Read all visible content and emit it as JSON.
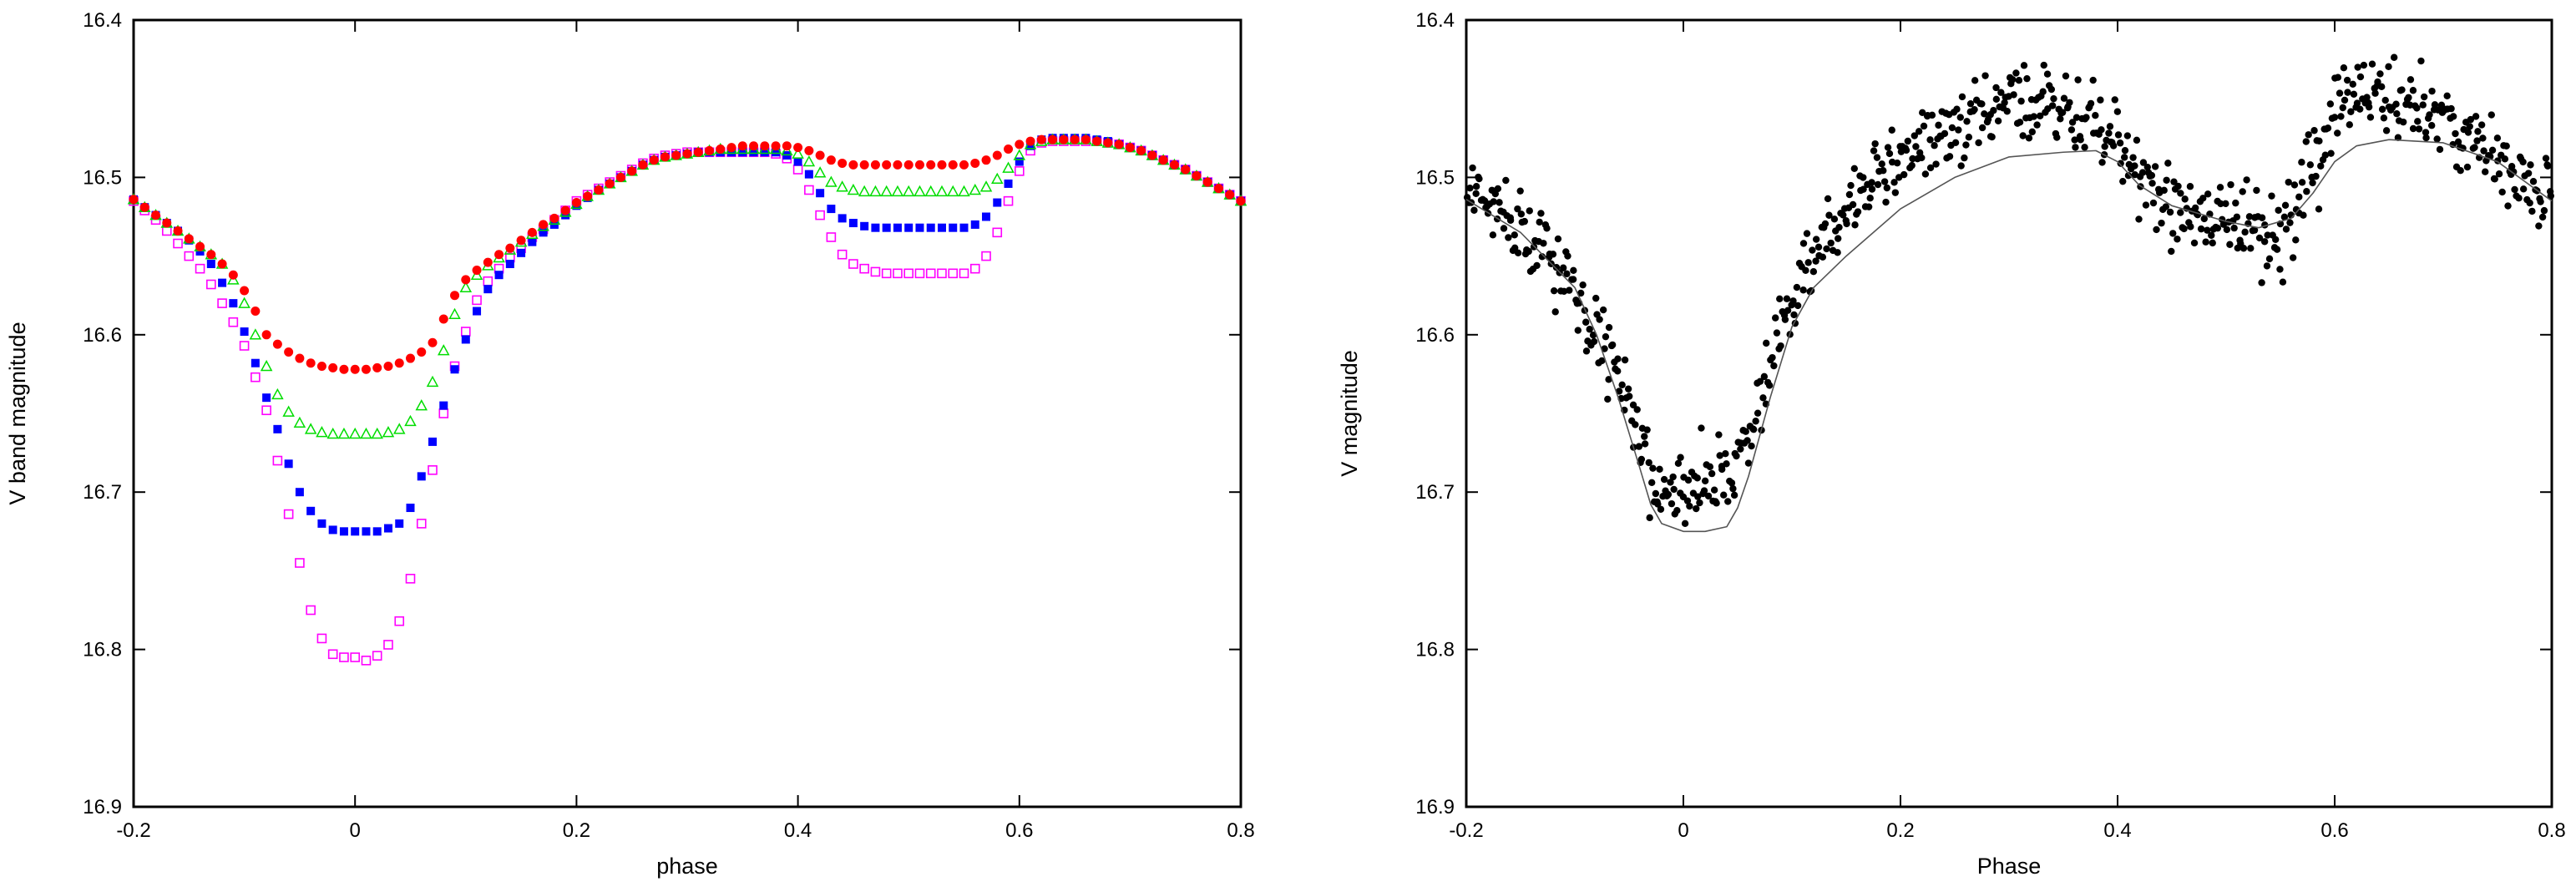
{
  "chart_data": [
    {
      "type": "scatter",
      "title": "",
      "xlabel": "phase",
      "ylabel": "V band magnitude",
      "xlim": [
        -0.2,
        0.8
      ],
      "ylim": [
        16.4,
        16.9
      ],
      "y_inverted": true,
      "grid": false,
      "legend": "none",
      "x_ticks": [
        -0.2,
        0,
        0.2,
        0.4,
        0.6,
        0.8
      ],
      "x_tick_labels": [
        "-0.2",
        "0",
        "0.2",
        "0.4",
        "0.6",
        "0.8"
      ],
      "y_ticks": [
        16.4,
        16.5,
        16.6,
        16.7,
        16.8,
        16.9
      ],
      "y_tick_labels": [
        "16.4",
        "16.5",
        "16.6",
        "16.7",
        "16.8",
        "16.9"
      ],
      "x": [
        -0.2,
        -0.19,
        -0.18,
        -0.17,
        -0.16,
        -0.15,
        -0.14,
        -0.13,
        -0.12,
        -0.11,
        -0.1,
        -0.09,
        -0.08,
        -0.07,
        -0.06,
        -0.05,
        -0.04,
        -0.03,
        -0.02,
        -0.01,
        0,
        0.01,
        0.02,
        0.03,
        0.04,
        0.05,
        0.06,
        0.07,
        0.08,
        0.09,
        0.1,
        0.11,
        0.12,
        0.13,
        0.14,
        0.15,
        0.16,
        0.17,
        0.18,
        0.19,
        0.2,
        0.21,
        0.22,
        0.23,
        0.24,
        0.25,
        0.26,
        0.27,
        0.28,
        0.29,
        0.3,
        0.31,
        0.32,
        0.33,
        0.34,
        0.35,
        0.36,
        0.37,
        0.38,
        0.39,
        0.4,
        0.41,
        0.42,
        0.43,
        0.44,
        0.45,
        0.46,
        0.47,
        0.48,
        0.49,
        0.5,
        0.51,
        0.52,
        0.53,
        0.54,
        0.55,
        0.56,
        0.57,
        0.58,
        0.59,
        0.6,
        0.61,
        0.62,
        0.63,
        0.64,
        0.65,
        0.66,
        0.67,
        0.68,
        0.69,
        0.7,
        0.71,
        0.72,
        0.73,
        0.74,
        0.75,
        0.76,
        0.77,
        0.78,
        0.79,
        0.8
      ],
      "series": [
        {
          "marker": "filled-circle",
          "color": "#ff0000",
          "values": [
            16.514,
            16.519,
            16.524,
            16.529,
            16.534,
            16.539,
            16.544,
            16.549,
            16.555,
            16.562,
            16.572,
            16.585,
            16.6,
            16.606,
            16.611,
            16.615,
            16.618,
            16.62,
            16.621,
            16.622,
            16.622,
            16.622,
            16.621,
            16.62,
            16.618,
            16.615,
            16.611,
            16.605,
            16.59,
            16.575,
            16.565,
            16.559,
            16.554,
            16.549,
            16.545,
            16.54,
            16.535,
            16.53,
            16.526,
            16.521,
            16.516,
            16.512,
            16.508,
            16.504,
            16.5,
            16.496,
            16.492,
            16.489,
            16.487,
            16.486,
            16.485,
            16.484,
            16.483,
            16.482,
            16.481,
            16.48,
            16.48,
            16.48,
            16.48,
            16.48,
            16.481,
            16.483,
            16.486,
            16.489,
            16.491,
            16.492,
            16.492,
            16.492,
            16.492,
            16.492,
            16.492,
            16.492,
            16.492,
            16.492,
            16.492,
            16.492,
            16.491,
            16.489,
            16.486,
            16.482,
            16.479,
            16.477,
            16.476,
            16.476,
            16.476,
            16.476,
            16.476,
            16.477,
            16.478,
            16.479,
            16.481,
            16.483,
            16.486,
            16.489,
            16.492,
            16.495,
            16.499,
            16.503,
            16.507,
            16.511,
            16.515
          ]
        },
        {
          "marker": "open-triangle",
          "color": "#00dd00",
          "values": [
            16.514,
            16.519,
            16.524,
            16.529,
            16.534,
            16.539,
            16.544,
            16.549,
            16.555,
            16.565,
            16.58,
            16.6,
            16.62,
            16.638,
            16.649,
            16.656,
            16.66,
            16.662,
            16.663,
            16.663,
            16.663,
            16.663,
            16.663,
            16.662,
            16.66,
            16.655,
            16.645,
            16.63,
            16.61,
            16.587,
            16.57,
            16.562,
            16.556,
            16.551,
            16.546,
            16.541,
            16.536,
            16.531,
            16.527,
            16.522,
            16.517,
            16.512,
            16.508,
            16.504,
            16.5,
            16.496,
            16.492,
            16.489,
            16.487,
            16.486,
            16.485,
            16.484,
            16.483,
            16.482,
            16.482,
            16.482,
            16.482,
            16.482,
            16.482,
            16.483,
            16.485,
            16.49,
            16.497,
            16.503,
            16.506,
            16.508,
            16.509,
            16.509,
            16.509,
            16.509,
            16.509,
            16.509,
            16.509,
            16.509,
            16.509,
            16.509,
            16.508,
            16.506,
            16.501,
            16.494,
            16.486,
            16.479,
            16.477,
            16.476,
            16.476,
            16.476,
            16.476,
            16.477,
            16.478,
            16.479,
            16.481,
            16.483,
            16.486,
            16.489,
            16.492,
            16.495,
            16.499,
            16.503,
            16.507,
            16.511,
            16.515
          ]
        },
        {
          "marker": "filled-square",
          "color": "#0000ff",
          "values": [
            16.514,
            16.519,
            16.524,
            16.529,
            16.534,
            16.54,
            16.547,
            16.555,
            16.567,
            16.58,
            16.598,
            16.618,
            16.64,
            16.66,
            16.682,
            16.7,
            16.712,
            16.72,
            16.724,
            16.725,
            16.725,
            16.725,
            16.725,
            16.723,
            16.72,
            16.71,
            16.69,
            16.668,
            16.645,
            16.622,
            16.603,
            16.585,
            16.571,
            16.562,
            16.555,
            16.548,
            16.541,
            16.535,
            16.53,
            16.524,
            16.518,
            16.513,
            16.508,
            16.504,
            16.5,
            16.496,
            16.492,
            16.489,
            16.487,
            16.486,
            16.485,
            16.484,
            16.484,
            16.484,
            16.484,
            16.484,
            16.484,
            16.484,
            16.484,
            16.486,
            16.49,
            16.498,
            16.51,
            16.52,
            16.526,
            16.529,
            16.531,
            16.532,
            16.532,
            16.532,
            16.532,
            16.532,
            16.532,
            16.532,
            16.532,
            16.532,
            16.53,
            16.525,
            16.516,
            16.504,
            16.49,
            16.48,
            16.476,
            16.475,
            16.475,
            16.475,
            16.475,
            16.476,
            16.477,
            16.479,
            16.481,
            16.483,
            16.486,
            16.489,
            16.492,
            16.495,
            16.499,
            16.503,
            16.507,
            16.511,
            16.515
          ]
        },
        {
          "marker": "open-square",
          "color": "#ff00ff",
          "values": [
            16.515,
            16.521,
            16.527,
            16.534,
            16.542,
            16.55,
            16.558,
            16.568,
            16.58,
            16.592,
            16.607,
            16.627,
            16.648,
            16.68,
            16.714,
            16.745,
            16.775,
            16.793,
            16.803,
            16.805,
            16.805,
            16.807,
            16.804,
            16.797,
            16.782,
            16.755,
            16.72,
            16.686,
            16.65,
            16.62,
            16.598,
            16.578,
            16.566,
            16.558,
            16.551,
            16.545,
            16.538,
            16.533,
            16.527,
            16.521,
            16.515,
            16.511,
            16.507,
            16.503,
            16.499,
            16.495,
            16.491,
            16.488,
            16.486,
            16.485,
            16.484,
            16.484,
            16.484,
            16.484,
            16.484,
            16.484,
            16.484,
            16.484,
            16.485,
            16.488,
            16.495,
            16.508,
            16.524,
            16.538,
            16.549,
            16.555,
            16.558,
            16.56,
            16.561,
            16.561,
            16.561,
            16.561,
            16.561,
            16.561,
            16.561,
            16.561,
            16.558,
            16.55,
            16.535,
            16.515,
            16.496,
            16.483,
            16.478,
            16.477,
            16.477,
            16.477,
            16.477,
            16.477,
            16.478,
            16.479,
            16.481,
            16.483,
            16.486,
            16.489,
            16.492,
            16.495,
            16.499,
            16.503,
            16.507,
            16.511,
            16.515
          ]
        }
      ]
    },
    {
      "type": "scatter",
      "title": "",
      "xlabel": "Phase",
      "ylabel": "V magnitude",
      "xlim": [
        -0.2,
        0.8
      ],
      "ylim": [
        16.4,
        16.9
      ],
      "y_inverted": true,
      "grid": false,
      "legend": "none",
      "x_ticks": [
        -0.2,
        0,
        0.2,
        0.4,
        0.6,
        0.8
      ],
      "x_tick_labels": [
        "-0.2",
        "0",
        "0.2",
        "0.4",
        "0.6",
        "0.8"
      ],
      "y_ticks": [
        16.4,
        16.5,
        16.6,
        16.7,
        16.8,
        16.9
      ],
      "y_tick_labels": [
        "16.4",
        "16.5",
        "16.6",
        "16.7",
        "16.8",
        "16.9"
      ],
      "observations": {
        "marker": "filled-circle",
        "color": "#000000",
        "count": 760,
        "noise_sigma": 0.018,
        "model_offset_points": [
          [
            -0.2,
            -0.01
          ],
          [
            -0.1,
            0.0
          ],
          [
            0.0,
            -0.025
          ],
          [
            0.05,
            -0.03
          ],
          [
            0.1,
            -0.015
          ],
          [
            0.15,
            -0.03
          ],
          [
            0.25,
            -0.035
          ],
          [
            0.3,
            -0.04
          ],
          [
            0.4,
            -0.01
          ],
          [
            0.45,
            0.0
          ],
          [
            0.5,
            0.0
          ],
          [
            0.55,
            0.01
          ],
          [
            0.6,
            -0.03
          ],
          [
            0.65,
            -0.03
          ],
          [
            0.7,
            -0.015
          ],
          [
            0.75,
            0.0
          ],
          [
            0.8,
            0.0
          ]
        ]
      },
      "model": {
        "type": "line",
        "color": "#555555",
        "x": [
          -0.2,
          -0.15,
          -0.1,
          -0.08,
          -0.06,
          -0.04,
          -0.03,
          -0.02,
          0,
          0.02,
          0.04,
          0.05,
          0.06,
          0.08,
          0.1,
          0.12,
          0.15,
          0.2,
          0.25,
          0.3,
          0.35,
          0.38,
          0.4,
          0.42,
          0.45,
          0.5,
          0.53,
          0.56,
          0.58,
          0.6,
          0.62,
          0.65,
          0.7,
          0.75,
          0.8
        ],
        "y": [
          16.514,
          16.535,
          16.57,
          16.6,
          16.64,
          16.685,
          16.708,
          16.72,
          16.725,
          16.725,
          16.722,
          16.71,
          16.69,
          16.64,
          16.595,
          16.57,
          16.55,
          16.52,
          16.5,
          16.487,
          16.484,
          16.483,
          16.49,
          16.505,
          16.518,
          16.528,
          16.532,
          16.526,
          16.51,
          16.49,
          16.48,
          16.476,
          16.478,
          16.49,
          16.515
        ]
      }
    }
  ]
}
